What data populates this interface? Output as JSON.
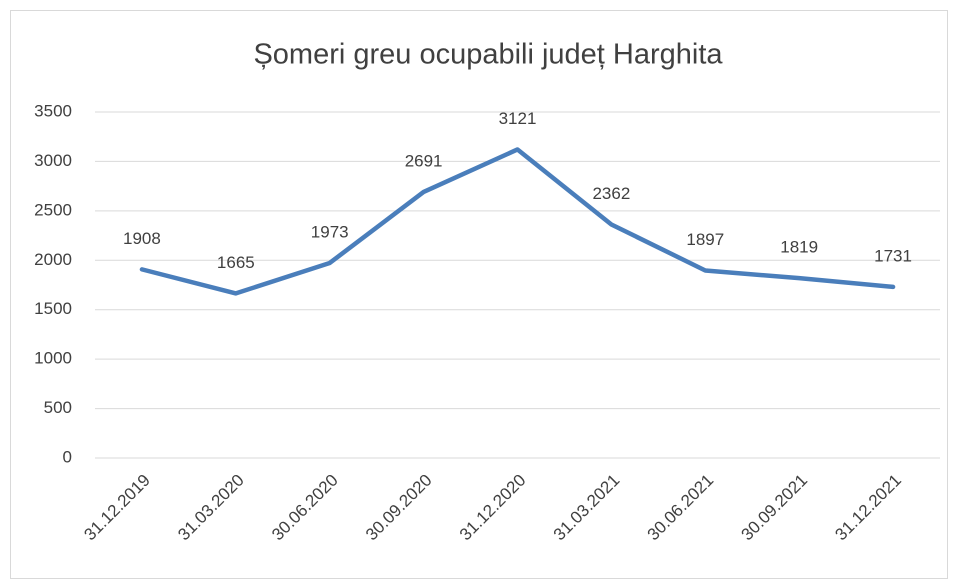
{
  "chart_data": {
    "type": "line",
    "title": "Șomeri greu ocupabili județ Harghita",
    "categories": [
      "31.12.2019",
      "31.03.2020",
      "30.06.2020",
      "30.09.2020",
      "31.12.2020",
      "31.03.2021",
      "30.06.2021",
      "30.09.2021",
      "31.12.2021"
    ],
    "values": [
      1908,
      1665,
      1973,
      2691,
      3121,
      2362,
      1897,
      1819,
      1731
    ],
    "color": "#4a7ebb",
    "ylim": [
      0,
      3500
    ],
    "yticks": [
      0,
      500,
      1000,
      1500,
      2000,
      2500,
      3000,
      3500
    ],
    "grid": true
  }
}
